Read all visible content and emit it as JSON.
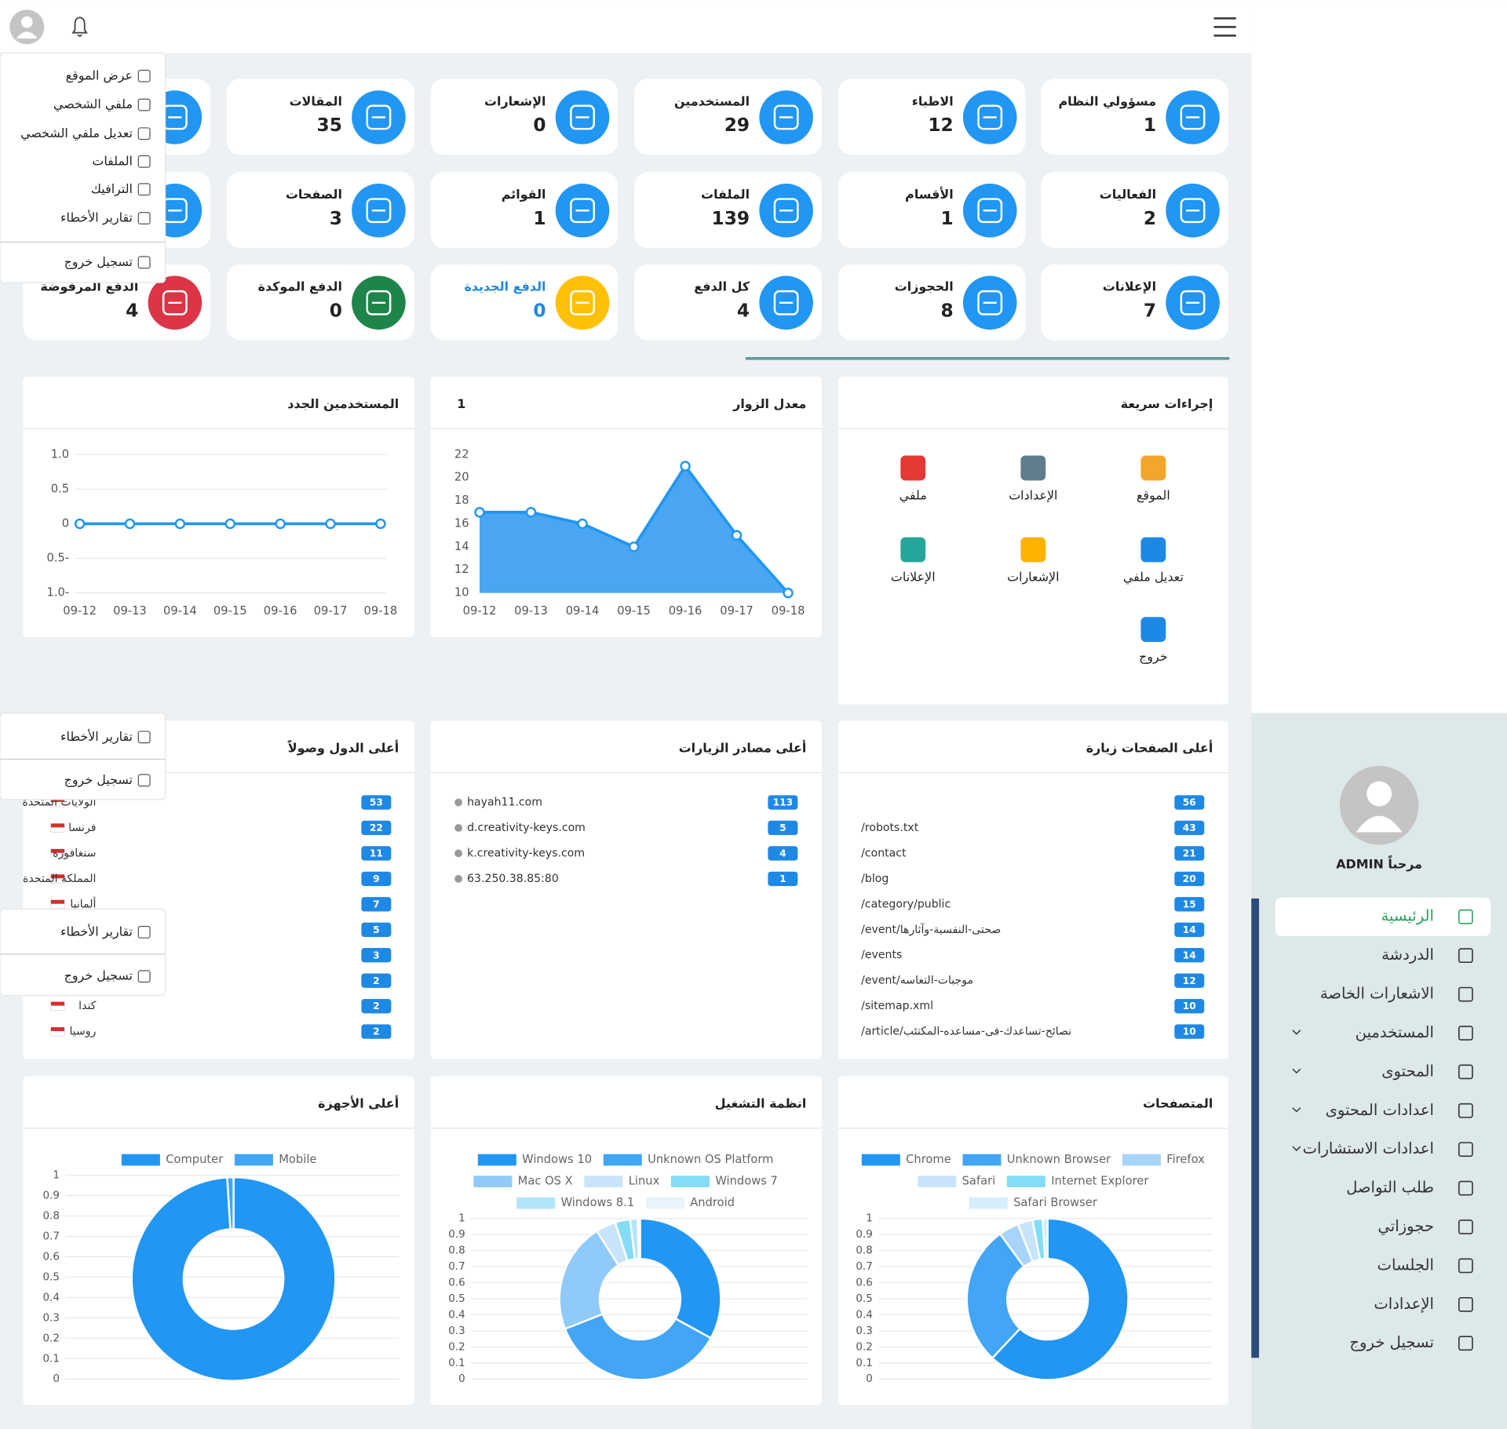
{
  "user_menu": {
    "items": [
      "عرض الموقع",
      "ملفي الشخصي",
      "تعديل ملفي الشخصي",
      "الملفات",
      "الترافيك",
      "تقارير الأخطاء"
    ],
    "logout": "تسجيل خروج"
  },
  "user_menu_fragments": [
    {
      "items": [
        "تقارير الأخطاء"
      ],
      "logout": "تسجيل خروج"
    },
    {
      "items": [
        "تقارير الأخطاء"
      ],
      "logout": "تسجيل خروج"
    }
  ],
  "stat_cards": [
    {
      "label": "مسؤولي النظام",
      "value": 1,
      "color": "#2196f3"
    },
    {
      "label": "الاطباء",
      "value": 12,
      "color": "#2196f3"
    },
    {
      "label": "المستخدمين",
      "value": 29,
      "color": "#2196f3"
    },
    {
      "label": "الإشعارات",
      "value": 0,
      "color": "#2196f3"
    },
    {
      "label": "المقالات",
      "value": 35,
      "color": "#2196f3"
    },
    {
      "label": null,
      "value": null,
      "color": "#2196f3"
    },
    {
      "label": "الفعاليات",
      "value": 2,
      "color": "#2196f3"
    },
    {
      "label": "الأقسام",
      "value": 1,
      "color": "#2196f3"
    },
    {
      "label": "الملفات",
      "value": 139,
      "color": "#2196f3"
    },
    {
      "label": "القوائم",
      "value": 1,
      "color": "#2196f3"
    },
    {
      "label": "الصفحات",
      "value": 3,
      "color": "#2196f3"
    },
    {
      "label": null,
      "value": null,
      "color": "#2196f3"
    },
    {
      "label": "الإعلانات",
      "value": 7,
      "color": "#2196f3"
    },
    {
      "label": "الحجوزات",
      "value": 8,
      "color": "#2196f3"
    },
    {
      "label": "كل الدفع",
      "value": 4,
      "color": "#2196f3"
    },
    {
      "label": "الدفع الجديدة",
      "value": 0,
      "color": "#ffc107",
      "text_color": "#1e88e5"
    },
    {
      "label": "الدفع الموكدة",
      "value": 0,
      "color": "#1e8449"
    },
    {
      "label": "الدفع المرفوضة",
      "value": 4,
      "color": "#dc3545"
    }
  ],
  "chart_data": [
    {
      "type": "line",
      "title": "المستخدمين الجدد",
      "categories": [
        "09-12",
        "09-13",
        "09-14",
        "09-15",
        "09-16",
        "09-17",
        "09-18"
      ],
      "values": [
        0,
        0,
        0,
        0,
        0,
        0,
        0
      ],
      "color": "#2196f3",
      "ylim": [
        -1,
        1
      ],
      "yticks": [
        {
          "value": 1,
          "label": "1.0"
        },
        0.5,
        0,
        {
          "value": -0.5,
          "label": "0.5-"
        },
        {
          "value": -1,
          "label": "1.0-"
        }
      ],
      "grid": true
    },
    {
      "type": "area",
      "title": "معدل الزوار",
      "subtitle": "1",
      "categories": [
        "09-12",
        "09-13",
        "09-14",
        "09-15",
        "09-16",
        "09-17",
        "09-18"
      ],
      "values": [
        17,
        17,
        16,
        14,
        21,
        15,
        10
      ],
      "color": "#2196f3",
      "ylim": [
        10,
        22
      ],
      "yticks": [
        10,
        12,
        14,
        16,
        18,
        20,
        22
      ],
      "grid": false
    },
    {
      "type": "doughnut",
      "title": "أعلى الأجهزة",
      "categories": [
        "Computer",
        "Mobile"
      ],
      "values": [
        99,
        1
      ],
      "colors": [
        "#2196f3",
        "#42a5f5"
      ],
      "ylim": [
        0,
        1
      ],
      "yticks": [
        0,
        0.1,
        0.2,
        0.3,
        0.4,
        0.5,
        0.6,
        0.7,
        0.8,
        0.9,
        1
      ],
      "grid": true
    },
    {
      "type": "doughnut",
      "title": "انظمة التشغيل",
      "categories": [
        "Windows 10",
        "Unknown OS Platform",
        "Mac OS X",
        "Linux",
        "Windows 7",
        "Windows 8.1",
        "Android"
      ],
      "values": [
        33,
        36,
        22,
        4,
        3,
        1.5,
        0.5
      ],
      "colors": [
        "#2196f3",
        "#42a5f5",
        "#90caf9",
        "#c8e4fb",
        "#84dcf7",
        "#b3e5fc",
        "#e8f4fd"
      ],
      "ylim": [
        0,
        1
      ],
      "yticks": [
        0,
        0.1,
        0.2,
        0.3,
        0.4,
        0.5,
        0.6,
        0.7,
        0.8,
        0.9,
        1
      ],
      "grid": true
    },
    {
      "type": "doughnut",
      "title": "المتصفحات",
      "categories": [
        "Chrome",
        "Unknown Browser",
        "Firefox",
        "Safari",
        "Internet Explorer",
        "Safari Browser"
      ],
      "values": [
        62,
        28,
        4,
        3,
        2,
        1
      ],
      "colors": [
        "#2196f3",
        "#42a5f5",
        "#a6d4fa",
        "#c8e4fb",
        "#84dcf7",
        "#d6eefc"
      ],
      "ylim": [
        0,
        1
      ],
      "yticks": [
        0,
        0.1,
        0.2,
        0.3,
        0.4,
        0.5,
        0.6,
        0.7,
        0.8,
        0.9,
        1
      ],
      "grid": true
    }
  ],
  "quick_actions": {
    "title": "إجراءات سريعة",
    "items": [
      "الموقع",
      "الإعدادات",
      "ملفي",
      "تعديل ملفي",
      "الإشعارات",
      "الإعلانات",
      "خروج"
    ]
  },
  "top_countries": {
    "title": "أعلى الدول وصولاً",
    "rows": [
      {
        "name": "الولايات المتحدة",
        "count": 53
      },
      {
        "name": "فرنسا",
        "count": 22
      },
      {
        "name": "سنغافورة",
        "count": 11
      },
      {
        "name": "المملكة المتحدة",
        "count": 9
      },
      {
        "name": "ألمانيا",
        "count": 7
      },
      {
        "name": null,
        "count": 5
      },
      {
        "name": null,
        "count": 3
      },
      {
        "name": null,
        "count": 2
      },
      {
        "name": "كندا",
        "count": 2
      },
      {
        "name": "روسيا",
        "count": 2
      }
    ]
  },
  "top_referrers": {
    "title": "أعلى مصادر الزيارات",
    "rows": [
      {
        "source": "hayah11.com",
        "count": 113
      },
      {
        "source": "d.creativity-keys.com",
        "count": 5
      },
      {
        "source": "k.creativity-keys.com",
        "count": 4
      },
      {
        "source": "63.250.38.85:80",
        "count": 1
      }
    ]
  },
  "top_pages": {
    "title": "أعلى الصفحات زيارة",
    "rows": [
      {
        "path": null,
        "count": 56
      },
      {
        "path": "/robots.txt",
        "count": 43
      },
      {
        "path": "/contact",
        "count": 21
      },
      {
        "path": "/blog",
        "count": 20
      },
      {
        "path": "/category/public",
        "count": 15
      },
      {
        "path": "/event/صحتى-النفسية-وآثارها",
        "count": 14
      },
      {
        "path": "/events",
        "count": 14
      },
      {
        "path": "/event/موجبات-التعاسه",
        "count": 12
      },
      {
        "path": "/sitemap.xml",
        "count": 10
      },
      {
        "path": "/article/نصائح-تساعدك-فى-مساعده-المكتئب",
        "count": 10
      }
    ]
  },
  "sidebar": {
    "greeting": "مرحباً ADMIN",
    "items": [
      {
        "label": "الرئيسية",
        "active": true
      },
      {
        "label": "الدردشة"
      },
      {
        "label": "الاشعارات الخاصة"
      },
      {
        "label": "المستخدمين",
        "submenu": true
      },
      {
        "label": "المحتوى",
        "submenu": true
      },
      {
        "label": "اعدادات المحتوى",
        "submenu": true
      },
      {
        "label": "اعدادات الاستشارات",
        "submenu": true
      },
      {
        "label": "طلب التواصل"
      },
      {
        "label": "حجوزاتي"
      },
      {
        "label": "الجلسات"
      },
      {
        "label": "الإعدادات"
      },
      {
        "label": "تسجيل خروج"
      }
    ]
  }
}
